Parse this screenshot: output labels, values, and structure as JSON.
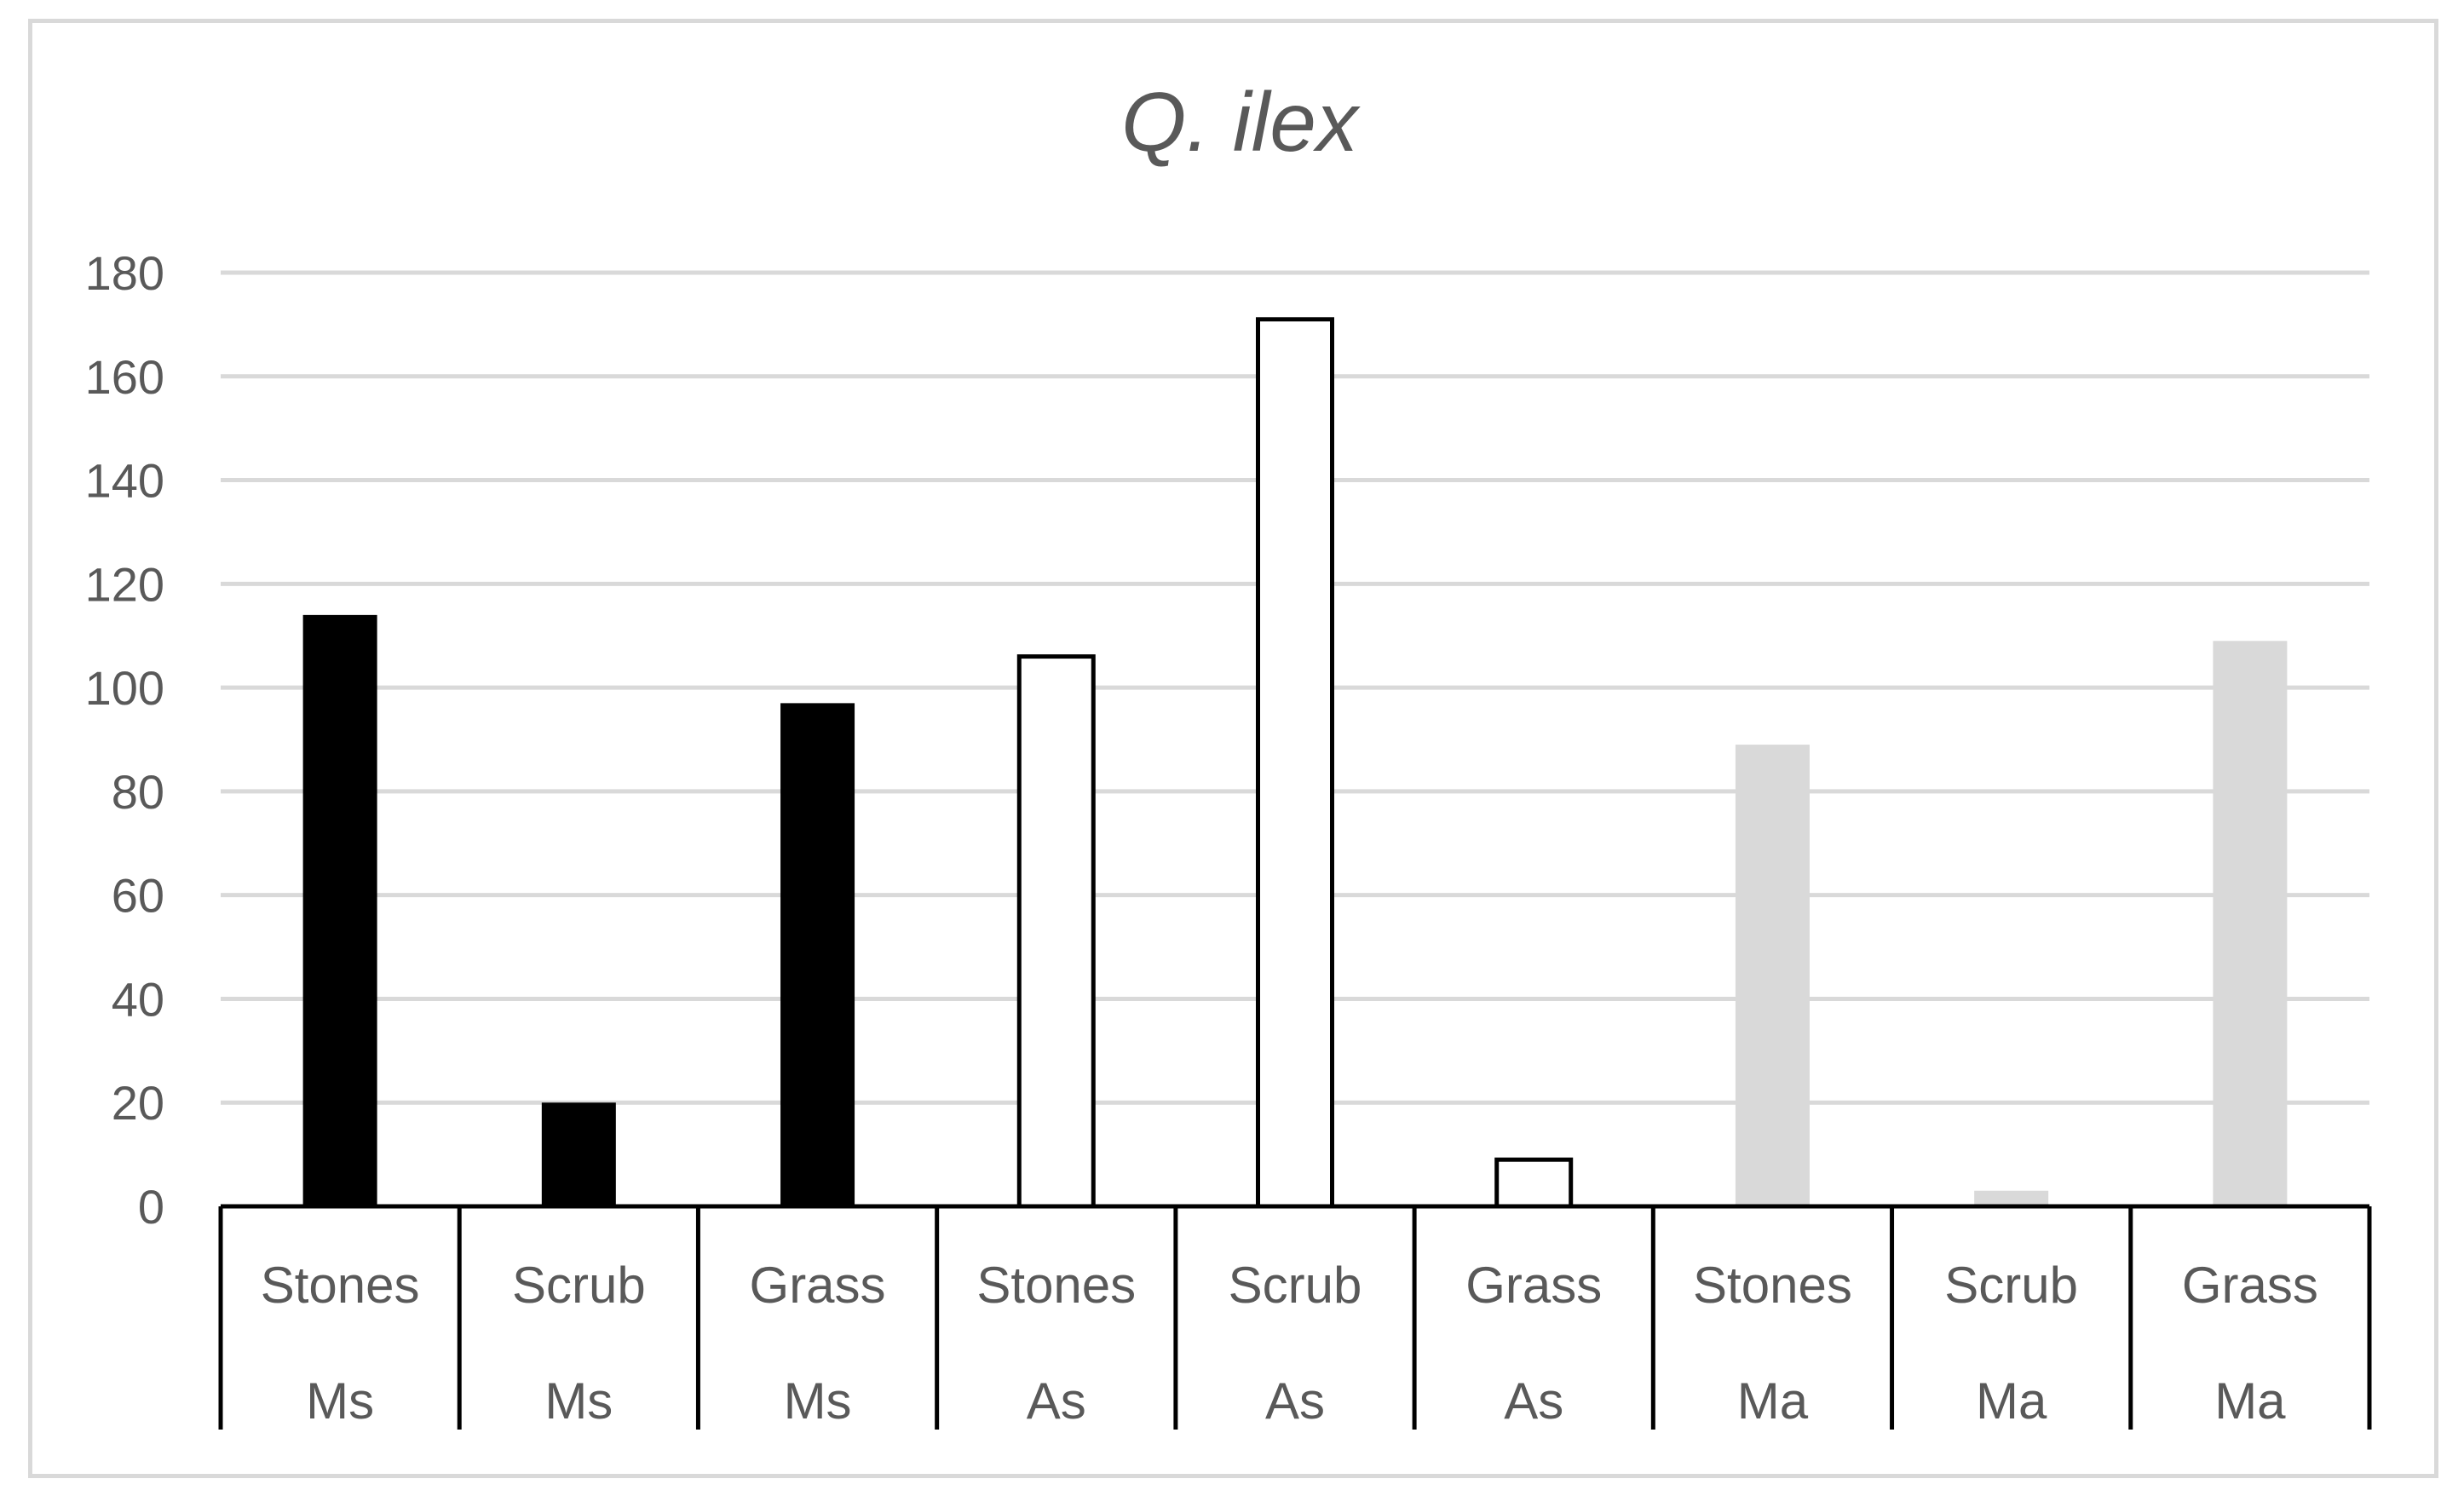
{
  "chart_data": {
    "type": "bar",
    "title": "Q. ilex",
    "xlabel": "",
    "ylabel": "",
    "ylim": [
      0,
      180
    ],
    "yticks": [
      "0",
      "20",
      "40",
      "60",
      "80",
      "100",
      "120",
      "140",
      "160",
      "180"
    ],
    "grid": true,
    "legend": "none",
    "categories": [
      {
        "label": "Stones",
        "group": "Ms"
      },
      {
        "label": "Scrub",
        "group": "Ms"
      },
      {
        "label": "Grass",
        "group": "Ms"
      },
      {
        "label": "Stones",
        "group": "As"
      },
      {
        "label": "Scrub",
        "group": "As"
      },
      {
        "label": "Grass",
        "group": "As"
      },
      {
        "label": "Stones",
        "group": "Ma"
      },
      {
        "label": "Scrub",
        "group": "Ma"
      },
      {
        "label": "Grass",
        "group": "Ma"
      }
    ],
    "values": [
      114,
      20,
      97,
      106,
      171,
      9,
      89,
      3,
      109
    ],
    "group_styles": {
      "Ms": {
        "fill": "#000000",
        "stroke": "#000000"
      },
      "As": {
        "fill": "#ffffff",
        "stroke": "#000000"
      },
      "Ma": {
        "fill": "#d9d9d9",
        "stroke": "#d9d9d9"
      }
    },
    "colors": {
      "gridline": "#d9d9d9",
      "axis": "#000000",
      "text": "#595959",
      "frame": "#d9d9d9"
    }
  }
}
